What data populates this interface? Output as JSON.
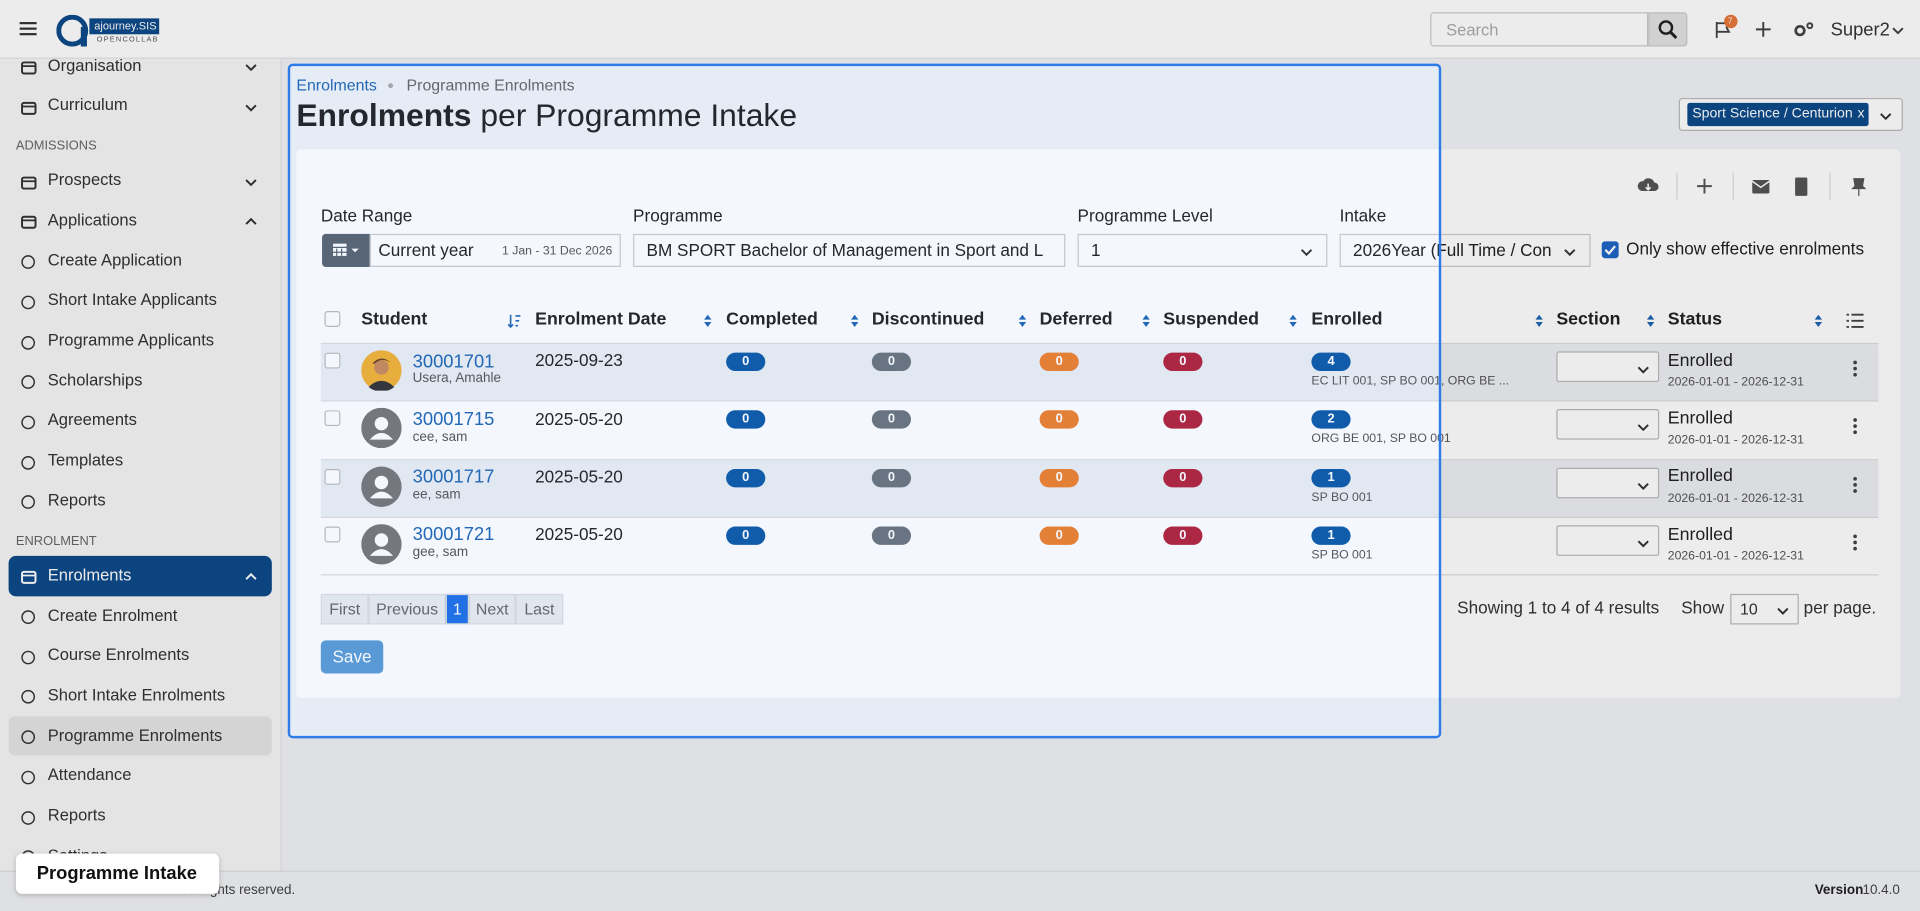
{
  "topbar": {
    "logo_name": "ajourney.SIS",
    "logo_tagline": "OPENCOLLAB",
    "search_placeholder": "Search",
    "notification_count": 7,
    "user": "Super2"
  },
  "sidebar": {
    "items": [
      "Organisation",
      "Curriculum"
    ],
    "sections": [
      {
        "heading": "ADMISSIONS",
        "items": [
          {
            "label": "Prospects"
          },
          {
            "label": "Applications",
            "children": [
              "Create Application",
              "Short Intake Applicants",
              "Programme Applicants",
              "Scholarships",
              "Agreements",
              "Templates",
              "Reports"
            ]
          }
        ]
      },
      {
        "heading": "ENROLMENT",
        "items": [
          {
            "label": "Enrolments",
            "children": [
              "Create Enrolment",
              "Course Enrolments",
              "Short Intake Enrolments",
              "Programme Enrolments",
              "Attendance",
              "Reports",
              "Settings"
            ]
          }
        ]
      }
    ]
  },
  "breadcrumb": [
    "Enrolments",
    "Programme Enrolments"
  ],
  "title_bold": "Enrolments",
  "title_rest": "per Programme Intake",
  "campus_filter": {
    "label": "Sport Science / Centurion",
    "remove": "x"
  },
  "filters": {
    "date_range": {
      "label": "Date Range",
      "value": "Current year",
      "range": "1 Jan - 31 Dec 2026"
    },
    "programme": {
      "label": "Programme",
      "value": "BM SPORT Bachelor of Management in Sport and L"
    },
    "programme_level": {
      "label": "Programme Level",
      "value": "1"
    },
    "intake": {
      "label": "Intake",
      "value": "2026Year (Full Time / Con"
    },
    "effective_only": "Only show effective enrolments"
  },
  "table": {
    "columns": [
      "Student",
      "Enrolment Date",
      "Completed",
      "Discontinued",
      "Deferred",
      "Suspended",
      "Enrolled",
      "Section",
      "Status"
    ],
    "rows": [
      {
        "id": "30001701",
        "name": "Usera, Amahle",
        "date": "2025-09-23",
        "completed": 0,
        "discontinued": 0,
        "deferred": 0,
        "suspended": 0,
        "enrolled": 4,
        "courses": "EC LIT 001, SP BO 001, ORG BE ...",
        "status": "Enrolled",
        "status_period": "2026-01-01 - 2026-12-31"
      },
      {
        "id": "30001715",
        "name": "cee, sam",
        "date": "2025-05-20",
        "completed": 0,
        "discontinued": 0,
        "deferred": 0,
        "suspended": 0,
        "enrolled": 2,
        "courses": "ORG BE 001, SP BO 001",
        "status": "Enrolled",
        "status_period": "2026-01-01 - 2026-12-31"
      },
      {
        "id": "30001717",
        "name": "ee, sam",
        "date": "2025-05-20",
        "completed": 0,
        "discontinued": 0,
        "deferred": 0,
        "suspended": 0,
        "enrolled": 1,
        "courses": "SP BO 001",
        "status": "Enrolled",
        "status_period": "2026-01-01 - 2026-12-31"
      },
      {
        "id": "30001721",
        "name": "gee, sam",
        "date": "2025-05-20",
        "completed": 0,
        "discontinued": 0,
        "deferred": 0,
        "suspended": 0,
        "enrolled": 1,
        "courses": "SP BO 001",
        "status": "Enrolled",
        "status_period": "2026-01-01 - 2026-12-31"
      }
    ]
  },
  "pagination": {
    "buttons": [
      "First",
      "Previous",
      "1",
      "Next",
      "Last"
    ],
    "summary": "Showing 1 to 4 of 4 results",
    "show": "Show",
    "page_size": "10",
    "per_page": "per page."
  },
  "save": "Save",
  "footer": {
    "copyright": "All rights reserved.",
    "version_label": "Version",
    "version": "10.4.0"
  },
  "tooltip": "Programme Intake"
}
